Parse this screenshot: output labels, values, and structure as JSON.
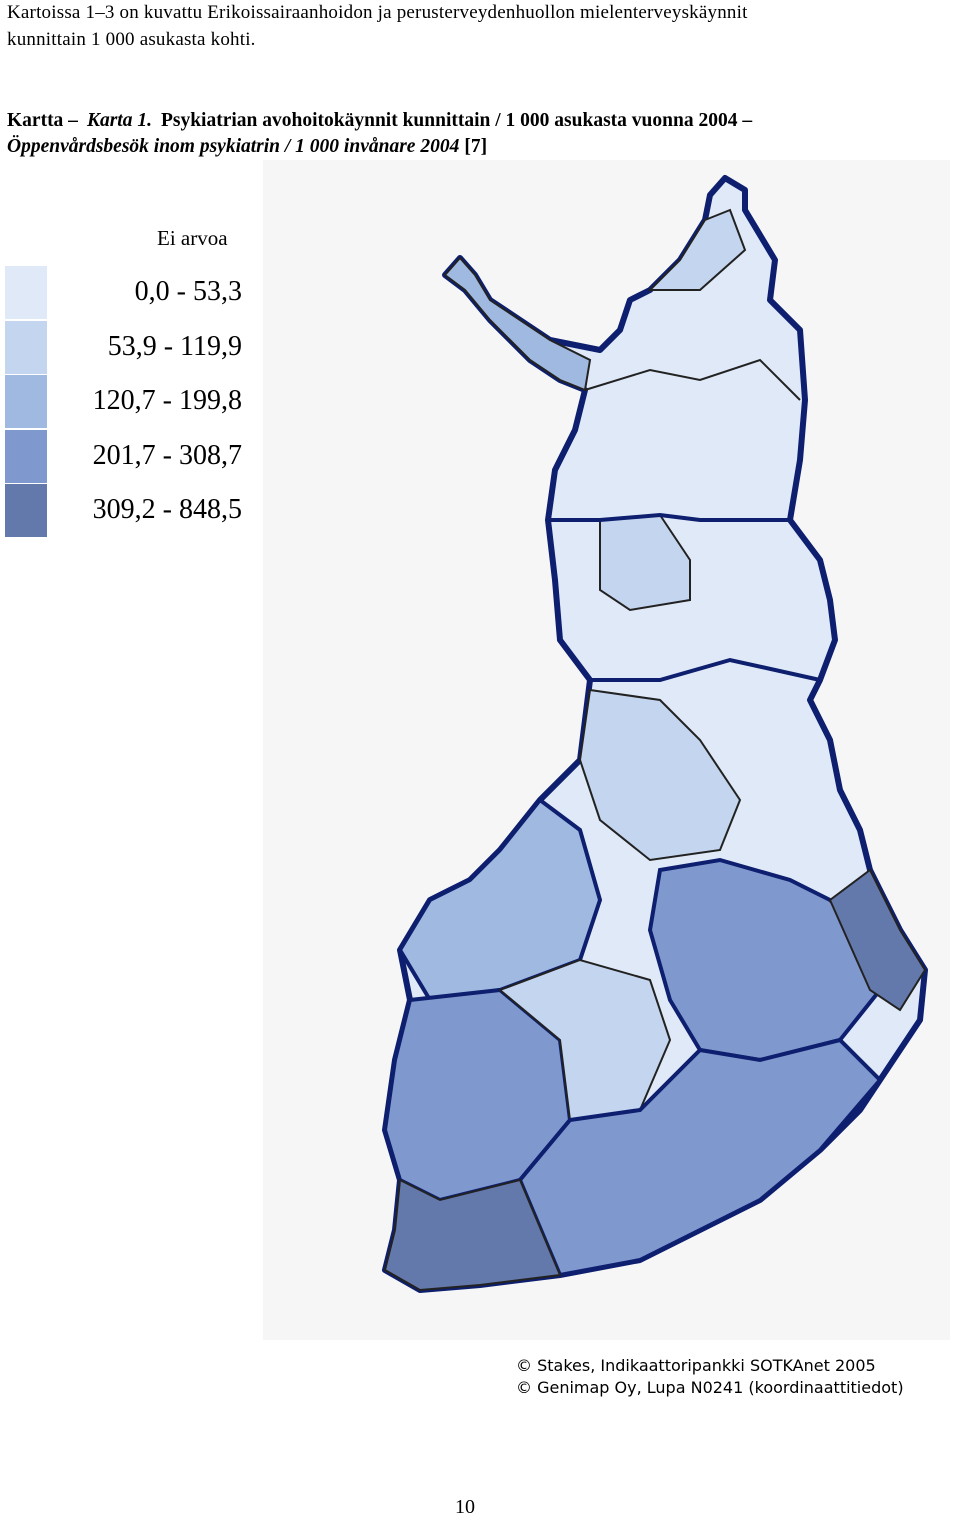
{
  "intro": [
    "Kartoissa 1–3 on kuvattu Erikoissairaanhoidon ja perusterveydenhuollon mielenterveyskäynnit",
    "kunnittain 1 000 asukasta kohti."
  ],
  "caption": {
    "line1": [
      "Kartta –",
      "Karta 1.",
      "Psykiatrian avohoitokäynnit kunnittain / 1 000 asukasta vuonna 2004 –"
    ],
    "line2": [
      "Öppenvårdsbesök inom psykiatrin / 1 000 invånare 2004",
      "[7]"
    ]
  },
  "legend": {
    "no_value": "Ei arvoa",
    "classes": [
      {
        "label": "0,0 - 53,3",
        "color": "#dfe9f7"
      },
      {
        "label": "53,9 - 119,9",
        "color": "#c4d5ef"
      },
      {
        "label": "120,7 - 199,8",
        "color": "#9fb9e1"
      },
      {
        "label": "201,7 - 308,7",
        "color": "#7f99cf"
      },
      {
        "label": "309,2 - 848,5",
        "color": "#6479ab"
      }
    ]
  },
  "copyright": [
    "© Stakes, Indikaattoripankki SOTKAnet 2005",
    "© Genimap Oy, Lupa N0241 (koordinaattitiedot)"
  ],
  "page_number": "10"
}
